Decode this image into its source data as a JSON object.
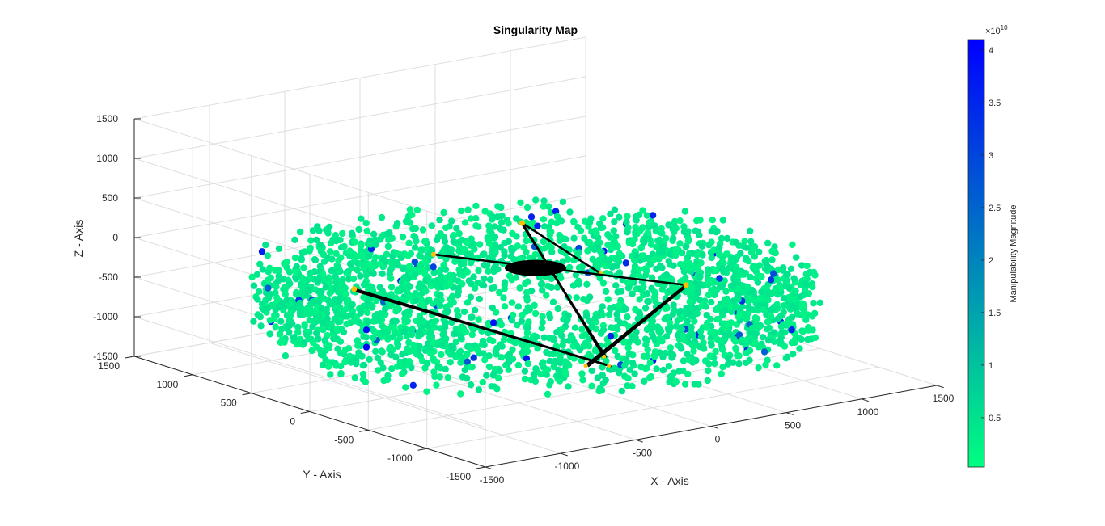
{
  "chart_data": {
    "type": "scatter",
    "title": "Singularity Map",
    "xlabel": "X - Axis",
    "ylabel": "Y - Axis",
    "zlabel": "Z - Axis",
    "xlim": [
      -1500,
      1500
    ],
    "ylim": [
      -1500,
      1500
    ],
    "zlim": [
      -1500,
      1500
    ],
    "x_ticks": [
      "-1500",
      "-1000",
      "-500",
      "0",
      "500",
      "1000",
      "1500"
    ],
    "y_ticks": [
      "-1500",
      "-1000",
      "-500",
      "0",
      "500",
      "1000",
      "1500"
    ],
    "z_ticks": [
      "-1500",
      "-1000",
      "-500",
      "0",
      "500",
      "1000",
      "1500"
    ],
    "grid": true,
    "colorbar": {
      "label": "Manipulability Magnitude",
      "exponent": "×10",
      "exponent_power": "10",
      "ticks": [
        "0.5",
        "1",
        "1.5",
        "2",
        "2.5",
        "3",
        "3.5",
        "4"
      ],
      "tick_values": [
        0.5,
        1,
        1.5,
        2,
        2.5,
        3,
        3.5,
        4
      ],
      "range": [
        0.03,
        4.1
      ],
      "colormap": [
        "#00ff80",
        "#0000ff"
      ]
    },
    "workspace_points": {
      "count": 2600,
      "radius_range": [
        400,
        1500
      ],
      "z_range": [
        -1000,
        -200
      ],
      "typical_value": 0.2
    },
    "mechanism": {
      "base_center": [
        0,
        0,
        -200
      ],
      "base_radius": 200,
      "base_joints": [
        [
          -1050,
          200,
          -200
        ],
        [
          200,
          -300,
          -200
        ],
        [
          -250,
          550,
          -200
        ]
      ],
      "elbows": [
        [
          -1050,
          200,
          -200
        ],
        [
          650,
          950,
          -300
        ],
        [
          300,
          -900,
          -100
        ]
      ],
      "platform": [
        [
          -150,
          -820,
          -1000
        ],
        [
          -50,
          -650,
          -1000
        ],
        [
          -250,
          -750,
          -1000
        ]
      ],
      "link_color": "#000000",
      "joint_color": "#ffc000"
    }
  }
}
